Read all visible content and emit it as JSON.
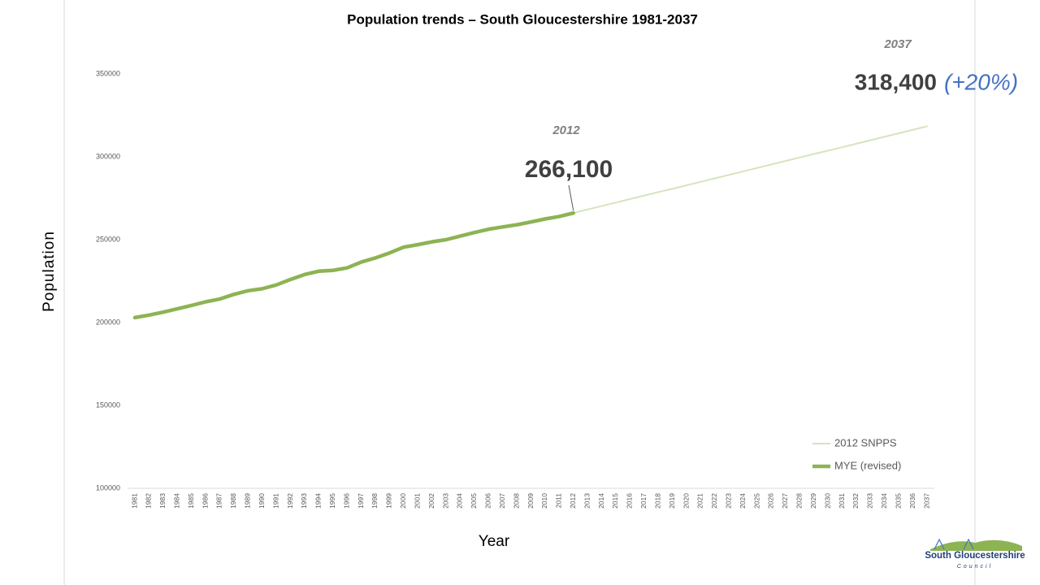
{
  "chart_data": {
    "type": "line",
    "title": "Population trends – South Gloucestershire 1981-2037",
    "x_label": "Year",
    "y_label": "Population",
    "categories": [
      "1981",
      "1982",
      "1983",
      "1984",
      "1985",
      "1986",
      "1987",
      "1988",
      "1989",
      "1990",
      "1991",
      "1992",
      "1993",
      "1994",
      "1995",
      "1996",
      "1997",
      "1998",
      "1999",
      "2000",
      "2001",
      "2002",
      "2003",
      "2004",
      "2005",
      "2006",
      "2007",
      "2008",
      "2009",
      "2010",
      "2011",
      "2012",
      "2013",
      "2014",
      "2015",
      "2016",
      "2017",
      "2018",
      "2019",
      "2020",
      "2021",
      "2022",
      "2023",
      "2024",
      "2025",
      "2026",
      "2027",
      "2028",
      "2029",
      "2030",
      "2031",
      "2032",
      "2033",
      "2034",
      "2035",
      "2036",
      "2037"
    ],
    "series": [
      {
        "name": "2012 SNPPS",
        "color": "#d5e4c0",
        "width": 2,
        "values": [
          null,
          null,
          null,
          null,
          null,
          null,
          null,
          null,
          null,
          null,
          null,
          null,
          null,
          null,
          null,
          null,
          null,
          null,
          null,
          null,
          null,
          null,
          null,
          null,
          null,
          null,
          null,
          null,
          null,
          null,
          null,
          266100,
          268200,
          270300,
          272400,
          274500,
          276600,
          278700,
          280700,
          282800,
          284900,
          287000,
          289100,
          291200,
          293300,
          295400,
          297500,
          299600,
          301700,
          303700,
          305800,
          307900,
          310000,
          312100,
          314200,
          316300,
          318400
        ]
      },
      {
        "name": "MYE (revised)",
        "color": "#8db353",
        "width": 4.5,
        "values": [
          203000,
          204500,
          206300,
          208300,
          210300,
          212500,
          214200,
          217000,
          219200,
          220400,
          222700,
          226000,
          229000,
          231000,
          231500,
          233000,
          236500,
          239000,
          242000,
          245500,
          247000,
          248700,
          250000,
          252200,
          254300,
          256300,
          257700,
          259000,
          260700,
          262500,
          264000,
          266100,
          null,
          null,
          null,
          null,
          null,
          null,
          null,
          null,
          null,
          null,
          null,
          null,
          null,
          null,
          null,
          null,
          null,
          null,
          null,
          null,
          null,
          null,
          null,
          null,
          null
        ]
      }
    ],
    "ylim": [
      100000,
      350000
    ],
    "yticks": [
      100000,
      150000,
      200000,
      250000,
      300000,
      350000
    ],
    "legend": "lower right",
    "annotations": [
      {
        "year": "2012",
        "value_label": "266,100"
      },
      {
        "year": "2037",
        "value_label": "318,400",
        "change": "(+20%)"
      }
    ],
    "logo": {
      "name": "South Gloucestershire",
      "sub": "Council"
    }
  }
}
